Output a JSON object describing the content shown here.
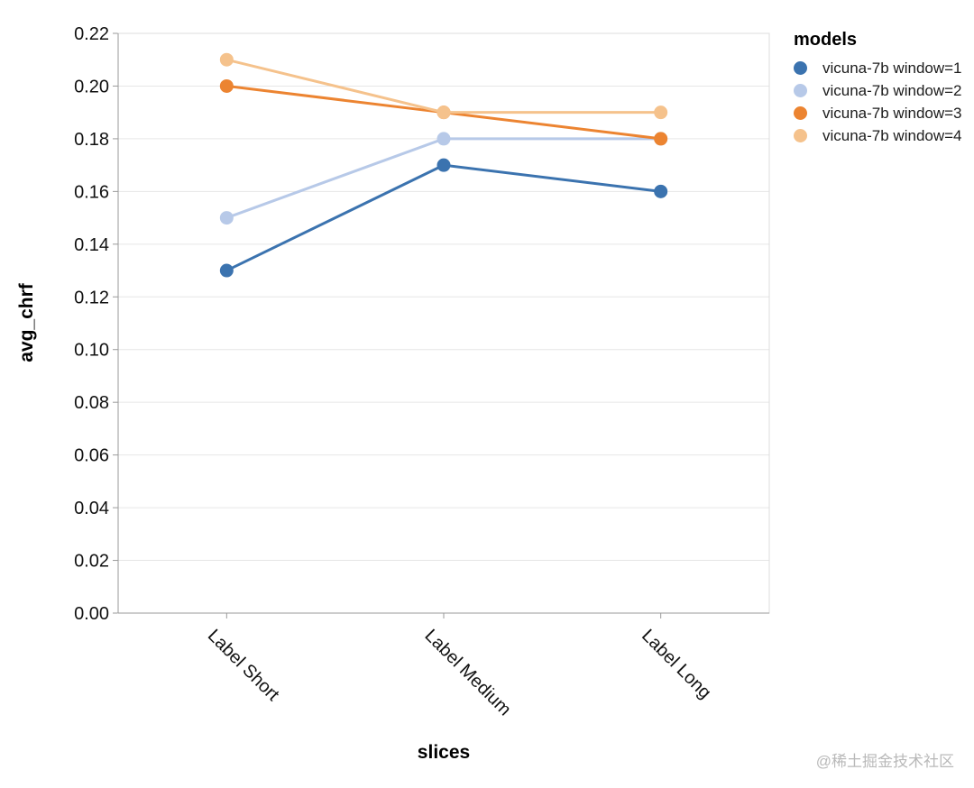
{
  "chart_data": {
    "type": "line",
    "title": "",
    "xlabel": "slices",
    "ylabel": "avg_chrf",
    "categories": [
      "Label Short",
      "Label Medium",
      "Label Long"
    ],
    "series": [
      {
        "name": "vicuna-7b window=1",
        "color": "#3b73af",
        "values": [
          0.13,
          0.17,
          0.16
        ]
      },
      {
        "name": "vicuna-7b window=2",
        "color": "#b7c9e8",
        "values": [
          0.15,
          0.18,
          0.18
        ]
      },
      {
        "name": "vicuna-7b window=3",
        "color": "#ec8431",
        "values": [
          0.2,
          0.19,
          0.18
        ]
      },
      {
        "name": "vicuna-7b window=4",
        "color": "#f5c28c",
        "values": [
          0.21,
          0.19,
          0.19
        ]
      }
    ],
    "ylim": [
      0,
      0.22
    ],
    "ytick_step": 0.02,
    "ytick_decimals": 2,
    "grid": true,
    "legend_title": "models",
    "legend_position": "right",
    "style": {
      "gridline_color": "#e6e6e6",
      "axis_line_color": "#9a9a9a",
      "view_border_color": "#dddddd",
      "tick_text_color": "#111111",
      "line_width": 3,
      "point_radius": 7.5
    }
  },
  "watermark": "@稀土掘金技术社区"
}
